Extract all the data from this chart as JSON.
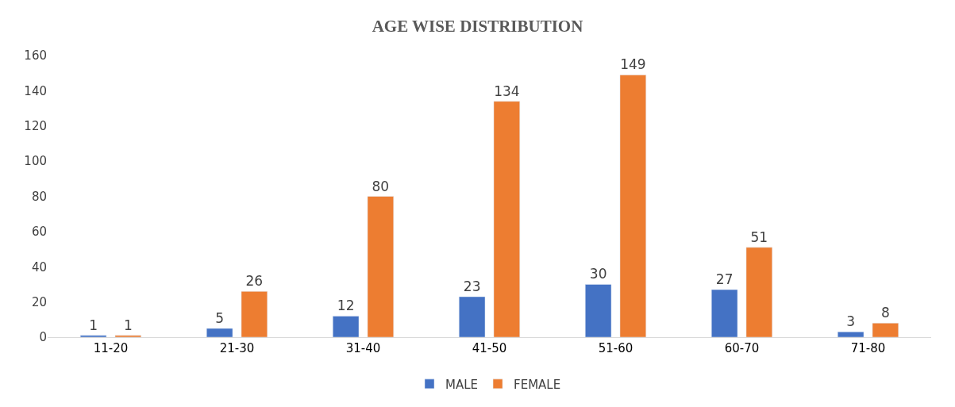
{
  "chart_data": {
    "type": "bar",
    "title": "AGE WISE DISTRIBUTION",
    "categories": [
      "11-20",
      "21-30",
      "31-40",
      "41-50",
      "51-60",
      "60-70",
      "71-80"
    ],
    "series": [
      {
        "name": "MALE",
        "color": "#4472c4",
        "values": [
          1,
          5,
          12,
          23,
          30,
          27,
          3
        ]
      },
      {
        "name": "FEMALE",
        "color": "#ed7d31",
        "values": [
          1,
          26,
          80,
          134,
          149,
          51,
          8
        ]
      }
    ],
    "ylim": [
      0,
      160
    ],
    "yticks": [
      0,
      20,
      40,
      60,
      80,
      100,
      120,
      140,
      160
    ],
    "data_labels": true,
    "legend": "bottom",
    "grid": false
  }
}
